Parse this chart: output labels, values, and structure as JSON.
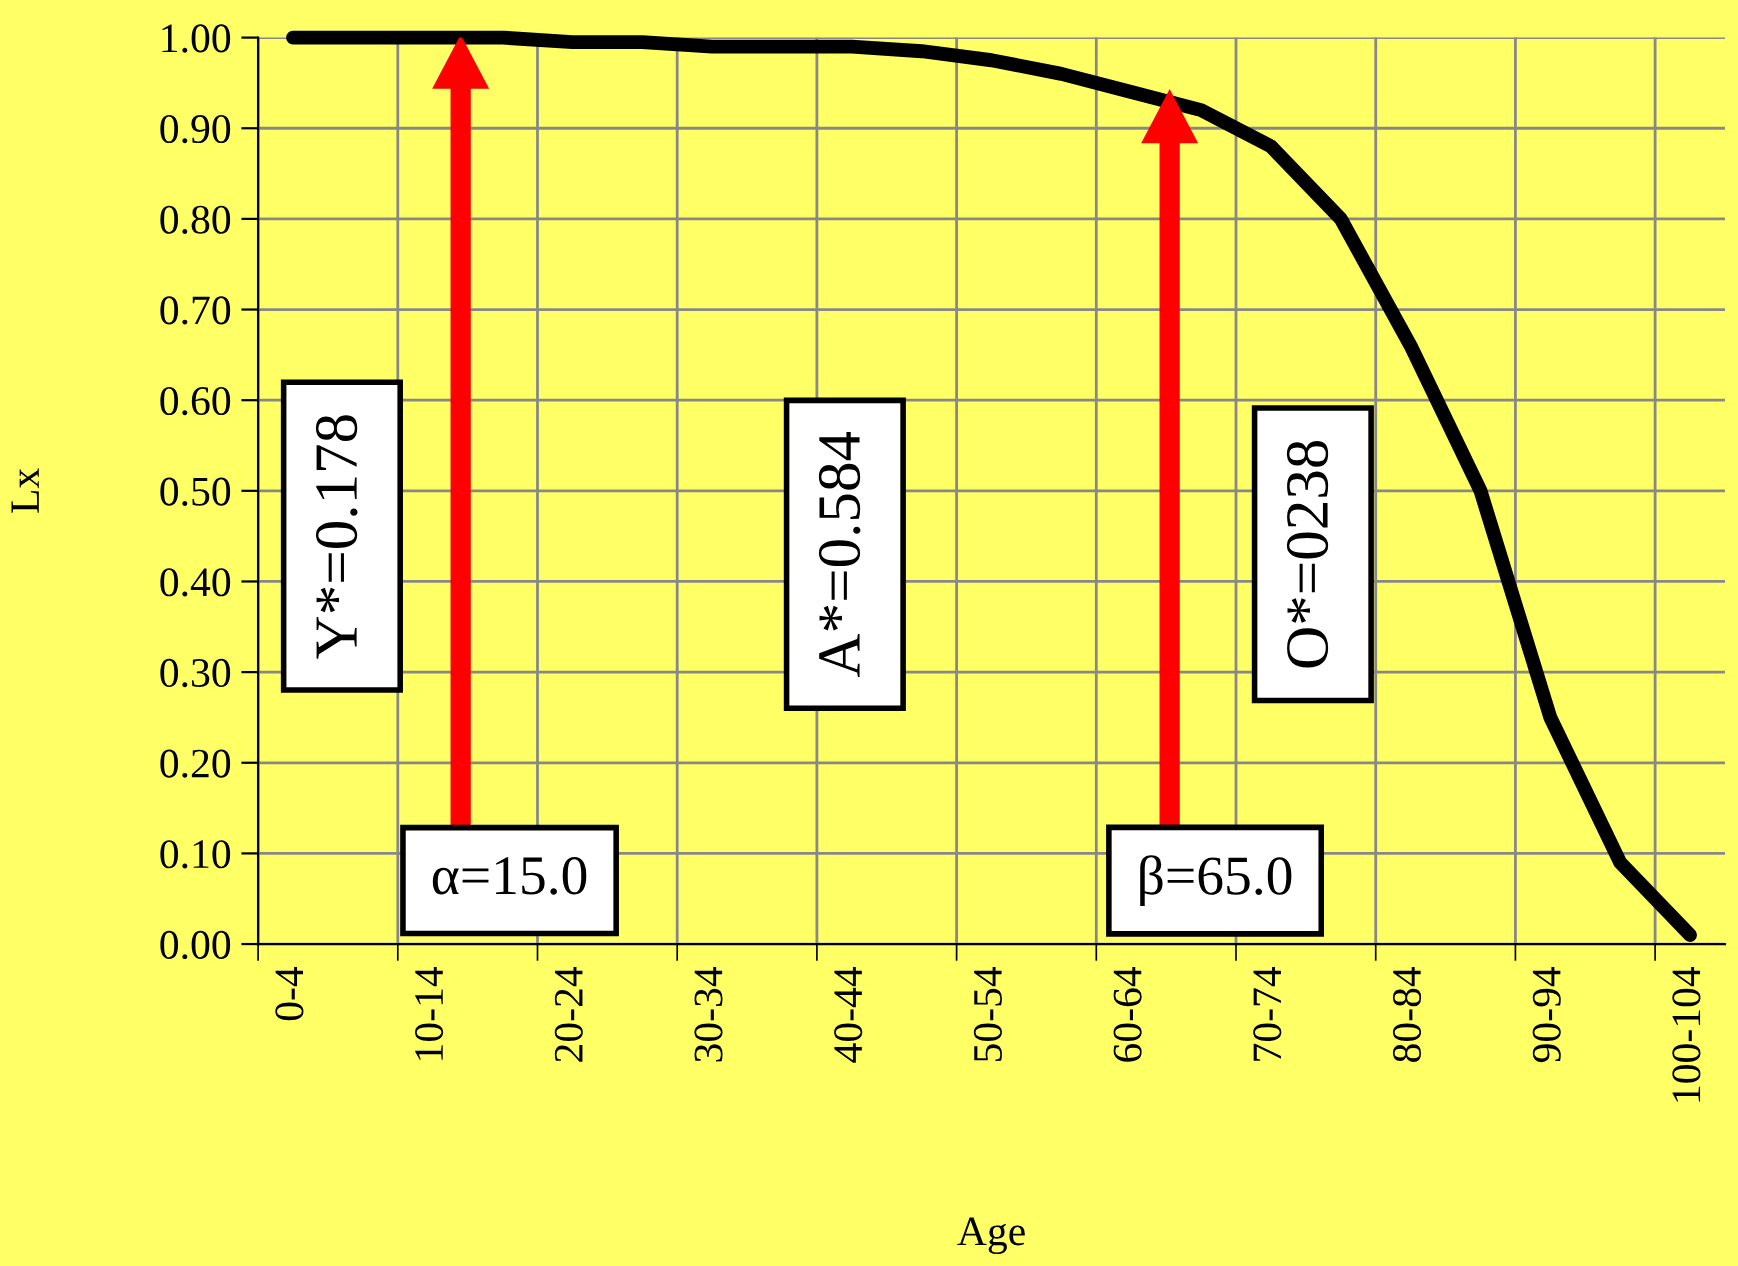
{
  "chart_data": {
    "type": "line",
    "xlabel": "Age",
    "ylabel": "Lx",
    "categories": [
      "0-4",
      null,
      "10-14",
      null,
      "20-24",
      null,
      "30-34",
      null,
      "40-44",
      null,
      "50-54",
      null,
      "60-64",
      null,
      "70-74",
      null,
      "80-84",
      null,
      "90-94",
      null,
      "100-104"
    ],
    "series": [
      {
        "color": "#000000",
        "values": [
          1.0,
          1.0,
          1.0,
          1.0,
          0.995,
          0.995,
          0.99,
          0.99,
          0.99,
          0.985,
          0.975,
          0.96,
          0.94,
          0.92,
          0.88,
          0.8,
          0.66,
          0.5,
          0.25,
          0.09,
          0.01
        ]
      }
    ],
    "ylim": [
      0,
      1.0
    ],
    "yticks": [
      {
        "value": 0,
        "label": "0.00"
      },
      {
        "value": 0.1,
        "label": "0.10"
      },
      {
        "value": 0.2,
        "label": "0.20"
      },
      {
        "value": 0.3,
        "label": "0.30"
      },
      {
        "value": 0.4,
        "label": "0.40"
      },
      {
        "value": 0.5,
        "label": "0.50"
      },
      {
        "value": 0.6,
        "label": "0.60"
      },
      {
        "value": 0.7,
        "label": "0.70"
      },
      {
        "value": 0.8,
        "label": "0.80"
      },
      {
        "value": 0.9,
        "label": "0.90"
      },
      {
        "value": 1.0,
        "label": "1.00"
      }
    ],
    "grid": true,
    "marker": "none",
    "line_style": "solid",
    "annotations": [
      "Y*=0.178",
      "A*=0.584",
      "O*=0238",
      "α=15.0",
      "β=65.0"
    ]
  }
}
